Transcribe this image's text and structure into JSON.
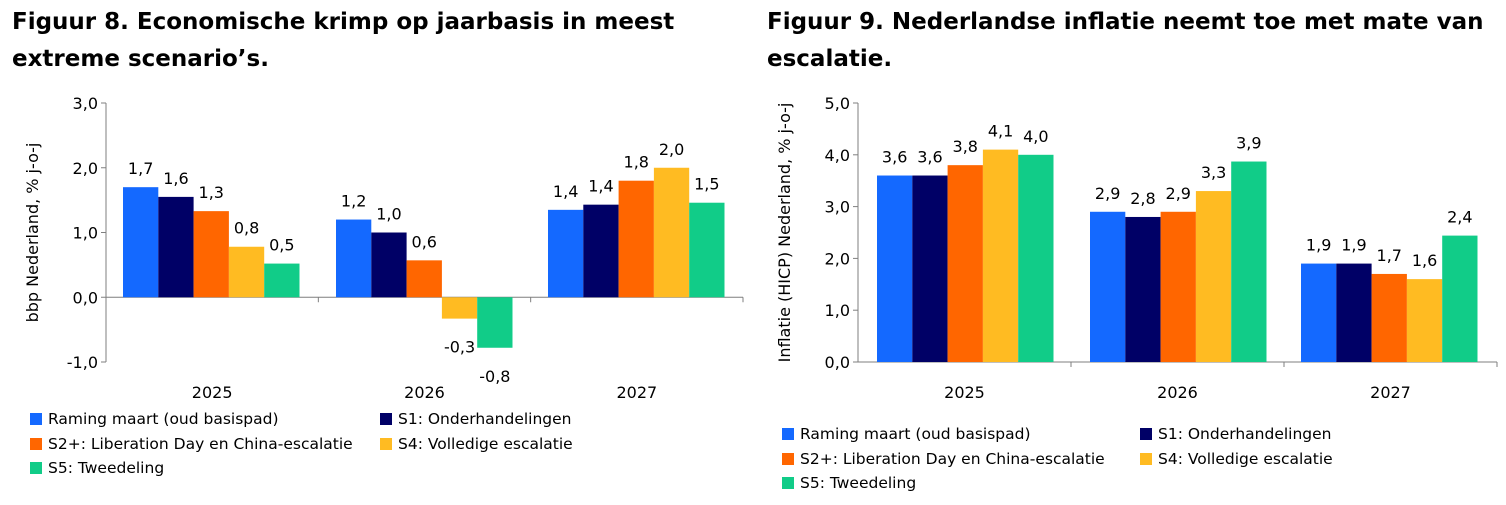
{
  "colors": {
    "s0": "#1469FF",
    "s1": "#000066",
    "s2": "#FF6600",
    "s3": "#FFBB22",
    "s4": "#11CC88",
    "axis": "#7f7f7f"
  },
  "legend": [
    "Raming maart (oud basispad)",
    "S1: Onderhandelingen",
    "S2+: Liberation Day en China-escalatie",
    "S4: Volledige escalatie",
    "S5: Tweedeling"
  ],
  "chart_data": [
    {
      "type": "bar",
      "title": "Figuur 8. Economische krimp op jaarbasis in meest extreme scenario’s.",
      "ylabel": "bbp Nederland, % j-o-j",
      "xlabel": "",
      "ylim": [
        -1,
        3
      ],
      "yticks": [
        "-1,0",
        "0,0",
        "1,0",
        "2,0",
        "3,0"
      ],
      "categories": [
        "2025",
        "2026",
        "2027"
      ],
      "series": [
        {
          "name": "Raming maart (oud basispad)",
          "values": [
            1.7,
            1.2,
            1.35
          ],
          "labels": [
            "1,7",
            "1,2",
            "1,4"
          ]
        },
        {
          "name": "S1: Onderhandelingen",
          "values": [
            1.55,
            1.0,
            1.43
          ],
          "labels": [
            "1,6",
            "1,0",
            "1,4"
          ]
        },
        {
          "name": "S2+: Liberation Day en China-escalatie",
          "values": [
            1.33,
            0.57,
            1.8
          ],
          "labels": [
            "1,3",
            "0,6",
            "1,8"
          ]
        },
        {
          "name": "S4: Volledige escalatie",
          "values": [
            0.78,
            -0.33,
            2.0
          ],
          "labels": [
            "0,8",
            "-0,3",
            "2,0"
          ]
        },
        {
          "name": "S5: Tweedeling",
          "values": [
            0.52,
            -0.78,
            1.46
          ],
          "labels": [
            "0,5",
            "-0,8",
            "1,5"
          ]
        }
      ]
    },
    {
      "type": "bar",
      "title": "Figuur 9. Nederlandse inflatie neemt toe met mate van escalatie.",
      "ylabel": "Inflatie (HICP) Nederland, % j-o-j",
      "xlabel": "",
      "ylim": [
        0,
        5
      ],
      "yticks": [
        "0,0",
        "1,0",
        "2,0",
        "3,0",
        "4,0",
        "5,0"
      ],
      "categories": [
        "2025",
        "2026",
        "2027"
      ],
      "series": [
        {
          "name": "Raming maart (oud basispad)",
          "values": [
            3.6,
            2.9,
            1.9
          ],
          "labels": [
            "3,6",
            "2,9",
            "1,9"
          ]
        },
        {
          "name": "S1: Onderhandelingen",
          "values": [
            3.6,
            2.8,
            1.9
          ],
          "labels": [
            "3,6",
            "2,8",
            "1,9"
          ]
        },
        {
          "name": "S2+: Liberation Day en China-escalatie",
          "values": [
            3.8,
            2.9,
            1.7
          ],
          "labels": [
            "3,8",
            "2,9",
            "1,7"
          ]
        },
        {
          "name": "S4: Volledige escalatie",
          "values": [
            4.1,
            3.3,
            1.6
          ],
          "labels": [
            "4,1",
            "3,3",
            "1,6"
          ]
        },
        {
          "name": "S5: Tweedeling",
          "values": [
            4.0,
            3.87,
            2.44
          ],
          "labels": [
            "4,0",
            "3,9",
            "2,4"
          ]
        }
      ]
    }
  ]
}
